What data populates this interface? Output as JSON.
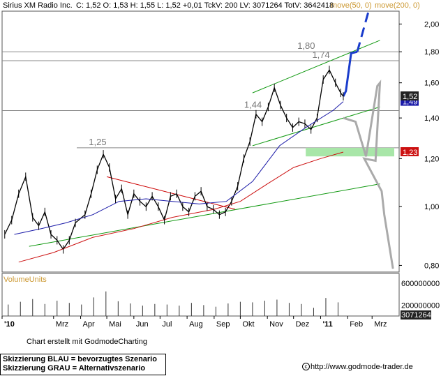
{
  "header": {
    "instrument": "Sirius XM Radio Inc.",
    "quote": "C: 1,52 O: 1,53 H: 1,55 L: 1,52 +0,01 TckV: 200 LV: 3071264 TotV: 3642418",
    "ma50": "move(50, 0)",
    "ma200": "move(200, 0)"
  },
  "colors": {
    "price": "#000000",
    "ma50": "#1a1aa8",
    "ma200": "#cc1111",
    "trend": "#119911",
    "resist": "#cc0000",
    "blue_scenario": "#1a3ccc",
    "gray_scenario": "#aaaaaa",
    "support_zone": "#a8e6a8",
    "level": "#888888",
    "header_text": "#000000",
    "header_ma": "#cc9933"
  },
  "price_labels": [
    "1,80",
    "1,74",
    "1,44",
    "1,25"
  ],
  "price_tags": {
    "last": "1,52",
    "ma50": "1,49",
    "ma200": "1,23"
  },
  "volume": {
    "title": "VolumeUnits",
    "ticks": [
      "600000000",
      "200000000"
    ],
    "last": "3071264"
  },
  "footer": {
    "credit": "Chart erstellt mit GodmodeCharting",
    "legend_blue": "Skizzierung BLAU = bevorzugtes Szenario",
    "legend_gray": "Skizzierung GRAU = Alternativszenario",
    "url": "http://www.godmode-trader.de"
  },
  "chart_data": {
    "type": "line",
    "x_ticks": [
      "'10",
      "Mrz",
      "Apr",
      "Mai",
      "Jun",
      "Jul",
      "Aug",
      "Sep",
      "Okt",
      "Nov",
      "Dez",
      "'11",
      "Feb",
      "Mrz"
    ],
    "y_ticks": [
      "2,00",
      "1,80",
      "1,60",
      "1,40",
      "1,20",
      "1,00",
      "0,80"
    ],
    "y_scale": "log",
    "ylim": [
      0.78,
      2.1
    ],
    "series": [
      {
        "name": "Sirius XM Radio Inc.",
        "points": [
          [
            "2010-01-04",
            0.9
          ],
          [
            "2010-01-12",
            0.95
          ],
          [
            "2010-01-20",
            1.05
          ],
          [
            "2010-01-28",
            1.12
          ],
          [
            "2010-02-05",
            0.96
          ],
          [
            "2010-02-12",
            0.93
          ],
          [
            "2010-02-19",
            0.98
          ],
          [
            "2010-02-26",
            0.9
          ],
          [
            "2010-03-05",
            0.88
          ],
          [
            "2010-03-12",
            0.85
          ],
          [
            "2010-03-19",
            0.88
          ],
          [
            "2010-03-26",
            0.94
          ],
          [
            "2010-04-06",
            0.97
          ],
          [
            "2010-04-13",
            1.05
          ],
          [
            "2010-04-20",
            1.15
          ],
          [
            "2010-04-27",
            1.22
          ],
          [
            "2010-05-04",
            1.16
          ],
          [
            "2010-05-11",
            1.03
          ],
          [
            "2010-05-18",
            1.07
          ],
          [
            "2010-05-25",
            0.97
          ],
          [
            "2010-06-01",
            1.05
          ],
          [
            "2010-06-08",
            1.02
          ],
          [
            "2010-06-15",
            1.0
          ],
          [
            "2010-06-22",
            1.04
          ],
          [
            "2010-06-29",
            1.0
          ],
          [
            "2010-07-06",
            0.95
          ],
          [
            "2010-07-13",
            1.04
          ],
          [
            "2010-07-20",
            1.05
          ],
          [
            "2010-07-27",
            1.0
          ],
          [
            "2010-08-03",
            0.98
          ],
          [
            "2010-08-10",
            1.04
          ],
          [
            "2010-08-17",
            1.06
          ],
          [
            "2010-08-24",
            1.0
          ],
          [
            "2010-08-31",
            0.99
          ],
          [
            "2010-09-07",
            0.97
          ],
          [
            "2010-09-14",
            0.98
          ],
          [
            "2010-09-21",
            1.02
          ],
          [
            "2010-09-28",
            1.08
          ],
          [
            "2010-10-05",
            1.2
          ],
          [
            "2010-10-12",
            1.28
          ],
          [
            "2010-10-19",
            1.42
          ],
          [
            "2010-10-26",
            1.38
          ],
          [
            "2010-11-02",
            1.46
          ],
          [
            "2010-11-09",
            1.57
          ],
          [
            "2010-11-16",
            1.47
          ],
          [
            "2010-11-23",
            1.4
          ],
          [
            "2010-11-30",
            1.35
          ],
          [
            "2010-12-07",
            1.38
          ],
          [
            "2010-12-14",
            1.37
          ],
          [
            "2010-12-21",
            1.34
          ],
          [
            "2010-12-28",
            1.4
          ],
          [
            "2011-01-04",
            1.62
          ],
          [
            "2011-01-11",
            1.68
          ],
          [
            "2011-01-18",
            1.6
          ],
          [
            "2011-01-24",
            1.54
          ],
          [
            "2011-01-27",
            1.52
          ]
        ]
      },
      {
        "name": "move(50, 0)",
        "points": [
          [
            "2010-01-15",
            0.9
          ],
          [
            "2010-02-15",
            0.92
          ],
          [
            "2010-03-15",
            0.94
          ],
          [
            "2010-04-15",
            0.97
          ],
          [
            "2010-05-15",
            1.02
          ],
          [
            "2010-06-15",
            1.03
          ],
          [
            "2010-07-15",
            1.02
          ],
          [
            "2010-08-15",
            1.01
          ],
          [
            "2010-09-15",
            1.02
          ],
          [
            "2010-10-15",
            1.1
          ],
          [
            "2010-11-15",
            1.26
          ],
          [
            "2010-12-15",
            1.35
          ],
          [
            "2011-01-15",
            1.44
          ],
          [
            "2011-01-27",
            1.49
          ]
        ]
      },
      {
        "name": "move(200, 0)",
        "points": [
          [
            "2010-01-20",
            0.81
          ],
          [
            "2010-03-01",
            0.84
          ],
          [
            "2010-04-15",
            0.89
          ],
          [
            "2010-06-01",
            0.92
          ],
          [
            "2010-07-15",
            0.96
          ],
          [
            "2010-09-01",
            0.99
          ],
          [
            "2010-10-01",
            1.02
          ],
          [
            "2010-11-01",
            1.09
          ],
          [
            "2010-12-01",
            1.16
          ],
          [
            "2011-01-01",
            1.2
          ],
          [
            "2011-01-27",
            1.23
          ]
        ]
      }
    ],
    "volume": [
      [
        "2010-01-08",
        210000000.0
      ],
      [
        "2010-01-22",
        260000000.0
      ],
      [
        "2010-02-05",
        310000000.0
      ],
      [
        "2010-02-19",
        220000000.0
      ],
      [
        "2010-03-05",
        280000000.0
      ],
      [
        "2010-03-19",
        240000000.0
      ],
      [
        "2010-04-02",
        210000000.0
      ],
      [
        "2010-04-16",
        340000000.0
      ],
      [
        "2010-04-30",
        450000000.0
      ],
      [
        "2010-05-14",
        270000000.0
      ],
      [
        "2010-05-28",
        230000000.0
      ],
      [
        "2010-06-11",
        190000000.0
      ],
      [
        "2010-06-25",
        220000000.0
      ],
      [
        "2010-07-09",
        210000000.0
      ],
      [
        "2010-07-23",
        190000000.0
      ],
      [
        "2010-08-06",
        240000000.0
      ],
      [
        "2010-08-20",
        200000000.0
      ],
      [
        "2010-09-03",
        170000000.0
      ],
      [
        "2010-09-17",
        230000000.0
      ],
      [
        "2010-10-01",
        260000000.0
      ],
      [
        "2010-10-15",
        250000000.0
      ],
      [
        "2010-10-29",
        280000000.0
      ],
      [
        "2010-11-12",
        300000000.0
      ],
      [
        "2010-11-26",
        240000000.0
      ],
      [
        "2010-12-10",
        220000000.0
      ],
      [
        "2010-12-24",
        150000000.0
      ],
      [
        "2011-01-07",
        330000000.0
      ],
      [
        "2011-01-21",
        250000000.0
      ]
    ],
    "annotations": {
      "horizontal_levels": [
        1.8,
        1.74,
        1.44,
        1.25
      ],
      "ascending_channel": [
        {
          "from": [
            "2010-10-15",
            1.54
          ],
          "to": [
            "2011-03-10",
            1.88
          ]
        },
        {
          "from": [
            "2010-10-15",
            1.26
          ],
          "to": [
            "2011-03-10",
            1.46
          ]
        }
      ],
      "long_uptrend": {
        "from": [
          "2010-02-01",
          0.86
        ],
        "to": [
          "2011-03-10",
          1.09
        ]
      },
      "resistance_line": {
        "from": [
          "2010-05-01",
          1.12
        ],
        "to": [
          "2010-09-25",
          0.99
        ]
      },
      "support_zone": [
        1.21,
        1.25
      ],
      "scenario_blue": [
        [
          "2011-01-27",
          1.52
        ],
        [
          "2011-01-30",
          1.55
        ],
        [
          "2011-02-05",
          1.79
        ],
        [
          "2011-02-12",
          1.8
        ],
        [
          "2011-02-25",
          2.1
        ]
      ],
      "scenario_gray": [
        [
          "2011-01-27",
          1.4
        ],
        [
          "2011-02-10",
          1.38
        ],
        [
          "2011-02-22",
          1.21
        ],
        [
          "2011-03-07",
          1.58
        ],
        [
          "2011-03-10",
          1.6
        ],
        [
          "2011-03-05",
          1.19
        ],
        [
          "2011-02-20",
          1.2
        ],
        [
          "2011-03-12",
          1.06
        ],
        [
          "2011-03-15",
          0.97
        ],
        [
          "2011-03-25",
          0.79
        ]
      ]
    }
  }
}
